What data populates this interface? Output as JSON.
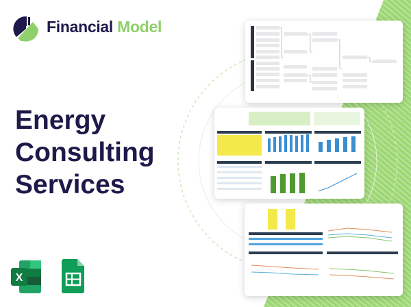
{
  "brand": {
    "name_part1": "Financial",
    "name_part2": "Model",
    "navy": "#1d1a4a",
    "green": "#8fd06a"
  },
  "headline": {
    "line1": "Energy",
    "line2": "Consulting",
    "line3": "Services"
  },
  "previews": [
    {
      "name": "dupont-analysis-diagram"
    },
    {
      "name": "dashboard-screenshot"
    },
    {
      "name": "charts-screenshot"
    }
  ],
  "apps": [
    {
      "icon": "excel-icon",
      "letter": "X",
      "color": "#1d6f42"
    },
    {
      "icon": "google-sheets-icon",
      "color": "#0f9d58"
    }
  ]
}
